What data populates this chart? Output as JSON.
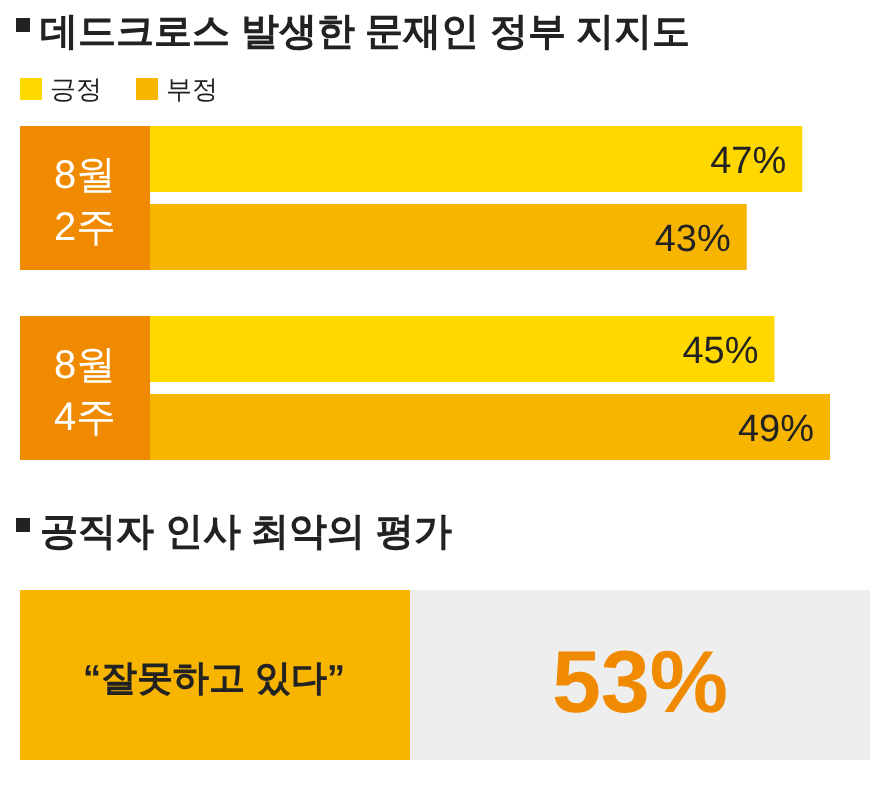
{
  "chart_data": [
    {
      "type": "bar",
      "orientation": "horizontal",
      "title": "데드크로스 발생한 문재인 정부 지지도",
      "categories": [
        "8월\n2주",
        "8월\n4주"
      ],
      "series": [
        {
          "name": "긍정",
          "color": "#ffd800",
          "values": [
            47,
            45
          ],
          "value_labels": [
            "47%",
            "45%"
          ]
        },
        {
          "name": "부정",
          "color": "#f7b500",
          "values": [
            43,
            49
          ],
          "value_labels": [
            "43%",
            "49%"
          ]
        }
      ],
      "legend": "top left"
    },
    {
      "type": "other",
      "title": "공직자 인사 최악의 평가",
      "annotations": [
        "“잘못하고 있다”",
        "53%"
      ]
    }
  ]
}
